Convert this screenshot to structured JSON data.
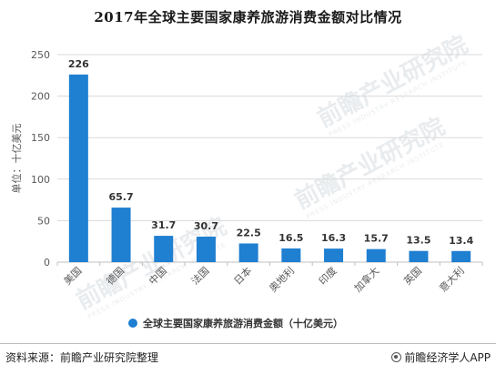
{
  "title": "2017年全球主要国家康养旅游消费金额对比情况",
  "footer": {
    "source": "资料来源：前瞻产业研究院整理",
    "credit": "前瞻经济学人APP"
  },
  "watermark": {
    "main": "前瞻产业研究院",
    "sub": "PRESS INDUSTRY RESEARCH INSTITUTE"
  },
  "colors": {
    "bar": "#1f7fd1",
    "grid": "#d9d9d9",
    "axis": "#bfbfbf",
    "text": "#595959"
  },
  "chart_data": {
    "type": "bar",
    "categories": [
      "美国",
      "德国",
      "中国",
      "法国",
      "日本",
      "奥地利",
      "印度",
      "加拿大",
      "英国",
      "意大利"
    ],
    "series": [
      {
        "name": "全球主要国家康养旅游消费金额（十亿美元）",
        "values": [
          226,
          65.7,
          31.7,
          30.7,
          22.5,
          16.5,
          16.3,
          15.7,
          13.5,
          13.4
        ]
      }
    ],
    "ylabel": "单位：十亿美元",
    "ylim": [
      0,
      250
    ],
    "yticks": [
      0,
      50,
      100,
      150,
      200,
      250
    ],
    "grid": true,
    "legend": "bottom"
  }
}
